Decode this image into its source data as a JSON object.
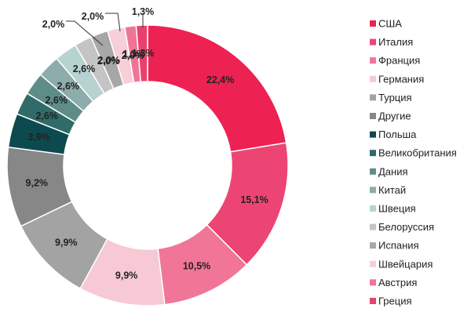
{
  "chart_data": {
    "type": "pie",
    "donut": true,
    "legend_position": "right",
    "slices": [
      {
        "label": "США",
        "value": 22.4,
        "display": "22,4%",
        "color": "#ee2153"
      },
      {
        "label": "Италия",
        "value": 15.1,
        "display": "15,1%",
        "color": "#ec4574"
      },
      {
        "label": "Франция",
        "value": 10.5,
        "display": "10,5%",
        "color": "#f17596"
      },
      {
        "label": "Германия",
        "value": 9.9,
        "display": "9,9%",
        "color": "#f6c9d4"
      },
      {
        "label": "Турция",
        "value": 9.9,
        "display": "9,9%",
        "color": "#a3a3a3"
      },
      {
        "label": "Другие",
        "value": 9.2,
        "display": "9,2%",
        "color": "#878787"
      },
      {
        "label": "Польша",
        "value": 3.9,
        "display": "3,9%",
        "color": "#0d4a4f"
      },
      {
        "label": "Великобритания",
        "value": 2.6,
        "display": "2,6%",
        "color": "#2f6b69"
      },
      {
        "label": "Дания",
        "value": 2.6,
        "display": "2,6%",
        "color": "#5e8d88"
      },
      {
        "label": "Китай",
        "value": 2.6,
        "display": "2,6%",
        "color": "#8cada9"
      },
      {
        "label": "Швеция",
        "value": 2.6,
        "display": "2,6%",
        "color": "#b7d3d1"
      },
      {
        "label": "Белоруссия",
        "value": 2.0,
        "display": "2,0%",
        "color": "#c4c4c4"
      },
      {
        "label": "Испания",
        "value": 2.0,
        "display": "2,0%",
        "color": "#a7a7a7"
      },
      {
        "label": "Швейцария",
        "value": 2.0,
        "display": "2,0%",
        "color": "#f7cfd9"
      },
      {
        "label": "Австрия",
        "value": 1.3,
        "display": "1,3%",
        "color": "#f07595"
      },
      {
        "label": "Греция",
        "value": 1.3,
        "display": "1,3%",
        "color": "#e8416e"
      }
    ]
  }
}
